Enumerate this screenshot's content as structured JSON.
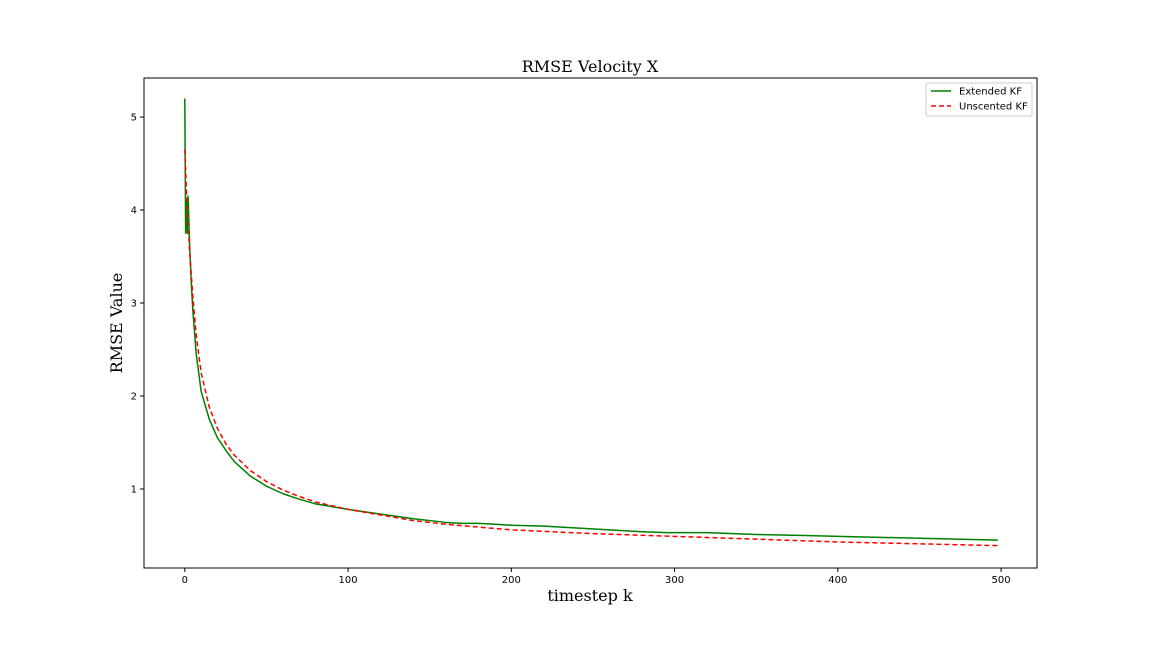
{
  "chart_data": {
    "type": "line",
    "title": "RMSE Velocity X",
    "xlabel": "timestep k",
    "ylabel": "RMSE Value",
    "xlim": [
      -25,
      522
    ],
    "ylim": [
      0.15,
      5.42
    ],
    "xticks": [
      0,
      100,
      200,
      300,
      400,
      500
    ],
    "yticks": [
      1,
      2,
      3,
      4,
      5
    ],
    "grid": false,
    "legend_position": "top-right",
    "series": [
      {
        "name": "Extended KF",
        "color": "#008000",
        "style": "solid",
        "x": [
          0,
          0.5,
          1,
          1.5,
          2,
          3,
          4,
          5,
          7,
          10,
          15,
          20,
          25,
          30,
          40,
          50,
          60,
          70,
          80,
          90,
          100,
          120,
          140,
          160,
          170,
          180,
          190,
          200,
          220,
          240,
          260,
          280,
          295,
          320,
          350,
          380,
          400,
          450,
          498
        ],
        "values": [
          5.2,
          3.75,
          4.1,
          3.75,
          4.15,
          3.6,
          3.2,
          2.9,
          2.45,
          2.05,
          1.75,
          1.55,
          1.42,
          1.3,
          1.14,
          1.03,
          0.95,
          0.89,
          0.84,
          0.81,
          0.78,
          0.73,
          0.68,
          0.64,
          0.63,
          0.63,
          0.62,
          0.61,
          0.6,
          0.58,
          0.56,
          0.54,
          0.53,
          0.53,
          0.51,
          0.5,
          0.49,
          0.47,
          0.45
        ]
      },
      {
        "name": "Unscented KF",
        "color": "#ff0000",
        "style": "dashed",
        "x": [
          0,
          1,
          2,
          3,
          4,
          5,
          7,
          10,
          15,
          20,
          25,
          30,
          40,
          50,
          60,
          70,
          80,
          90,
          100,
          120,
          140,
          160,
          180,
          200,
          250,
          300,
          350,
          400,
          450,
          498
        ],
        "values": [
          4.65,
          4.2,
          3.85,
          3.55,
          3.3,
          3.05,
          2.65,
          2.25,
          1.88,
          1.65,
          1.49,
          1.37,
          1.2,
          1.08,
          0.99,
          0.92,
          0.86,
          0.82,
          0.78,
          0.72,
          0.66,
          0.62,
          0.59,
          0.56,
          0.52,
          0.49,
          0.46,
          0.43,
          0.41,
          0.39
        ]
      }
    ]
  }
}
